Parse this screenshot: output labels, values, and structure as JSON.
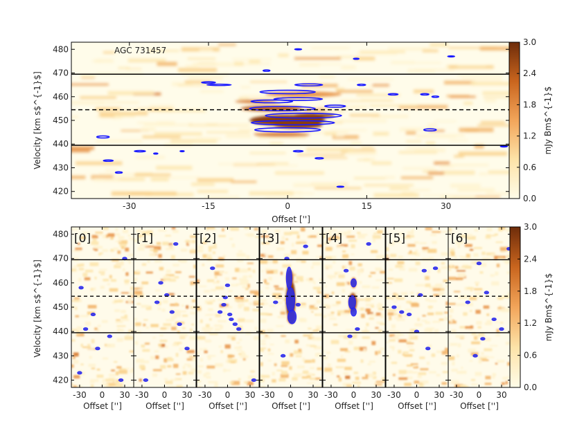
{
  "chart_data": [
    {
      "type": "heatmap",
      "title": "AGC 731457",
      "xlabel": "Offset ['']",
      "ylabel": "Velocity [km s$^{-1}$]",
      "xlim": [
        -41,
        42
      ],
      "ylim": [
        417,
        483
      ],
      "xticks": [
        "-30",
        "-15",
        "0",
        "15",
        "30"
      ],
      "xtick_values": [
        -30,
        -15,
        0,
        15,
        30
      ],
      "yticks": [
        "420",
        "430",
        "440",
        "450",
        "460",
        "470",
        "480"
      ],
      "ytick_values": [
        420,
        430,
        440,
        450,
        460,
        470,
        480
      ],
      "colorbar": {
        "label": "mJy Bm$^{-1}$",
        "ticks": [
          "0.0",
          "0.6",
          "1.2",
          "1.8",
          "2.4",
          "3.0"
        ],
        "range": [
          0.0,
          3.0
        ],
        "colormap": "white-orange-brown"
      },
      "hlines_solid": [
        469.5,
        439.5
      ],
      "hlines_dashed": [
        454.5
      ],
      "contour_color": "#1a1aff"
    },
    {
      "type": "heatmap",
      "panels": [
        "[0]",
        "[1]",
        "[2]",
        "[3]",
        "[4]",
        "[5]",
        "[6]"
      ],
      "xlabel": "Offset ['']",
      "ylabel": "Velocity [km s$^{-1}$]",
      "xlim": [
        -41,
        42
      ],
      "ylim": [
        417,
        483
      ],
      "xticks": [
        "-30",
        "0",
        "30"
      ],
      "xtick_values": [
        -30,
        0,
        30
      ],
      "yticks": [
        "420",
        "430",
        "440",
        "450",
        "460",
        "470",
        "480"
      ],
      "ytick_values": [
        420,
        430,
        440,
        450,
        460,
        470,
        480
      ],
      "colorbar": {
        "label": "mJy Bm$^{-1}$",
        "ticks": [
          "0.0",
          "0.6",
          "1.2",
          "1.8",
          "2.4",
          "3.0"
        ],
        "range": [
          0.0,
          3.0
        ]
      },
      "hlines_solid": [
        469.5,
        439.5
      ],
      "hlines_dashed": [
        454.5
      ]
    }
  ]
}
